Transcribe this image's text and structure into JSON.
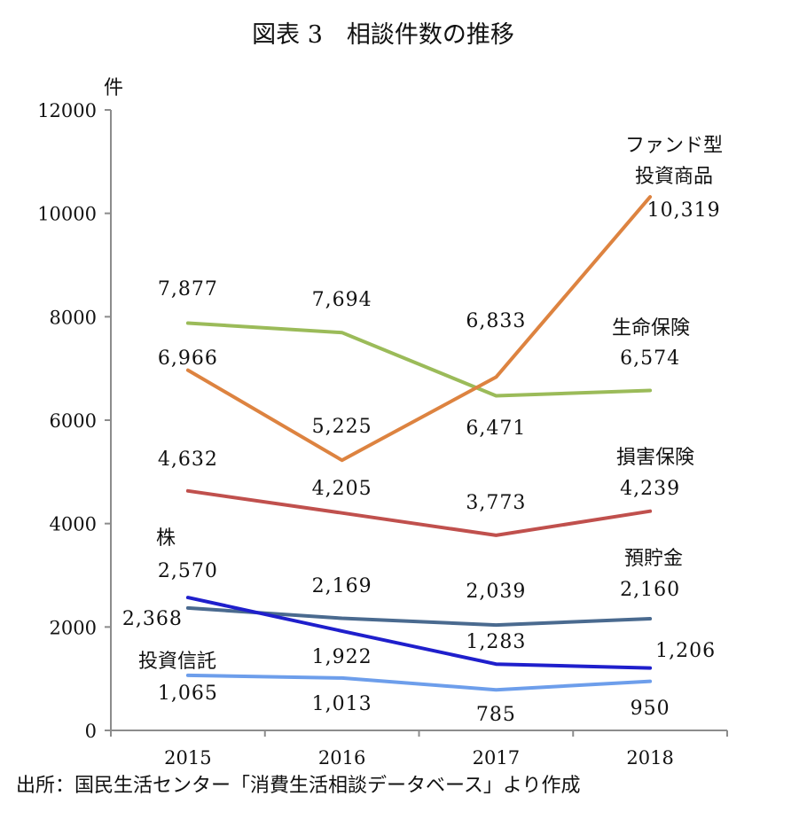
{
  "chart_data": {
    "type": "line",
    "title": "図表 3　相談件数の推移",
    "ylabel": "件",
    "xlabel": "",
    "ylim": [
      0,
      12000
    ],
    "yticks": [
      "0",
      "2000",
      "4000",
      "6000",
      "8000",
      "10000",
      "12000"
    ],
    "categories": [
      "2015",
      "2016",
      "2017",
      "2018"
    ],
    "grid": false,
    "legend": "none (series labels placed beside lines)",
    "source": "出所：国民生活センター「消費生活相談データベース」より作成",
    "series": [
      {
        "name": "生命保険",
        "values": [
          7877,
          7694,
          6471,
          6574
        ],
        "labels": [
          "7,877",
          "7,694",
          "6,471",
          "6,574"
        ],
        "color": "#9bbb59"
      },
      {
        "name": "ファンド型\n投資商品",
        "values": [
          6966,
          5225,
          6833,
          10319
        ],
        "labels": [
          "6,966",
          "5,225",
          "6,833",
          "10,319"
        ],
        "color": "#dd8340"
      },
      {
        "name": "損害保険",
        "values": [
          4632,
          4205,
          3773,
          4239
        ],
        "labels": [
          "4,632",
          "4,205",
          "3,773",
          "4,239"
        ],
        "color": "#c0504d"
      },
      {
        "name": "預貯金",
        "values": [
          2368,
          2169,
          2039,
          2160
        ],
        "labels": [
          "2,368",
          "2,169",
          "2,039",
          "2,160"
        ],
        "color": "#4a6a8f"
      },
      {
        "name": "株",
        "values": [
          2570,
          1922,
          1283,
          1206
        ],
        "labels": [
          "2,570",
          "1,922",
          "1,283",
          "1,206"
        ],
        "color": "#1f1fcc"
      },
      {
        "name": "投資信託",
        "values": [
          1065,
          1013,
          785,
          950
        ],
        "labels": [
          "1,065",
          "1,013",
          "785",
          "950"
        ],
        "color": "#6d9eeb"
      }
    ]
  }
}
